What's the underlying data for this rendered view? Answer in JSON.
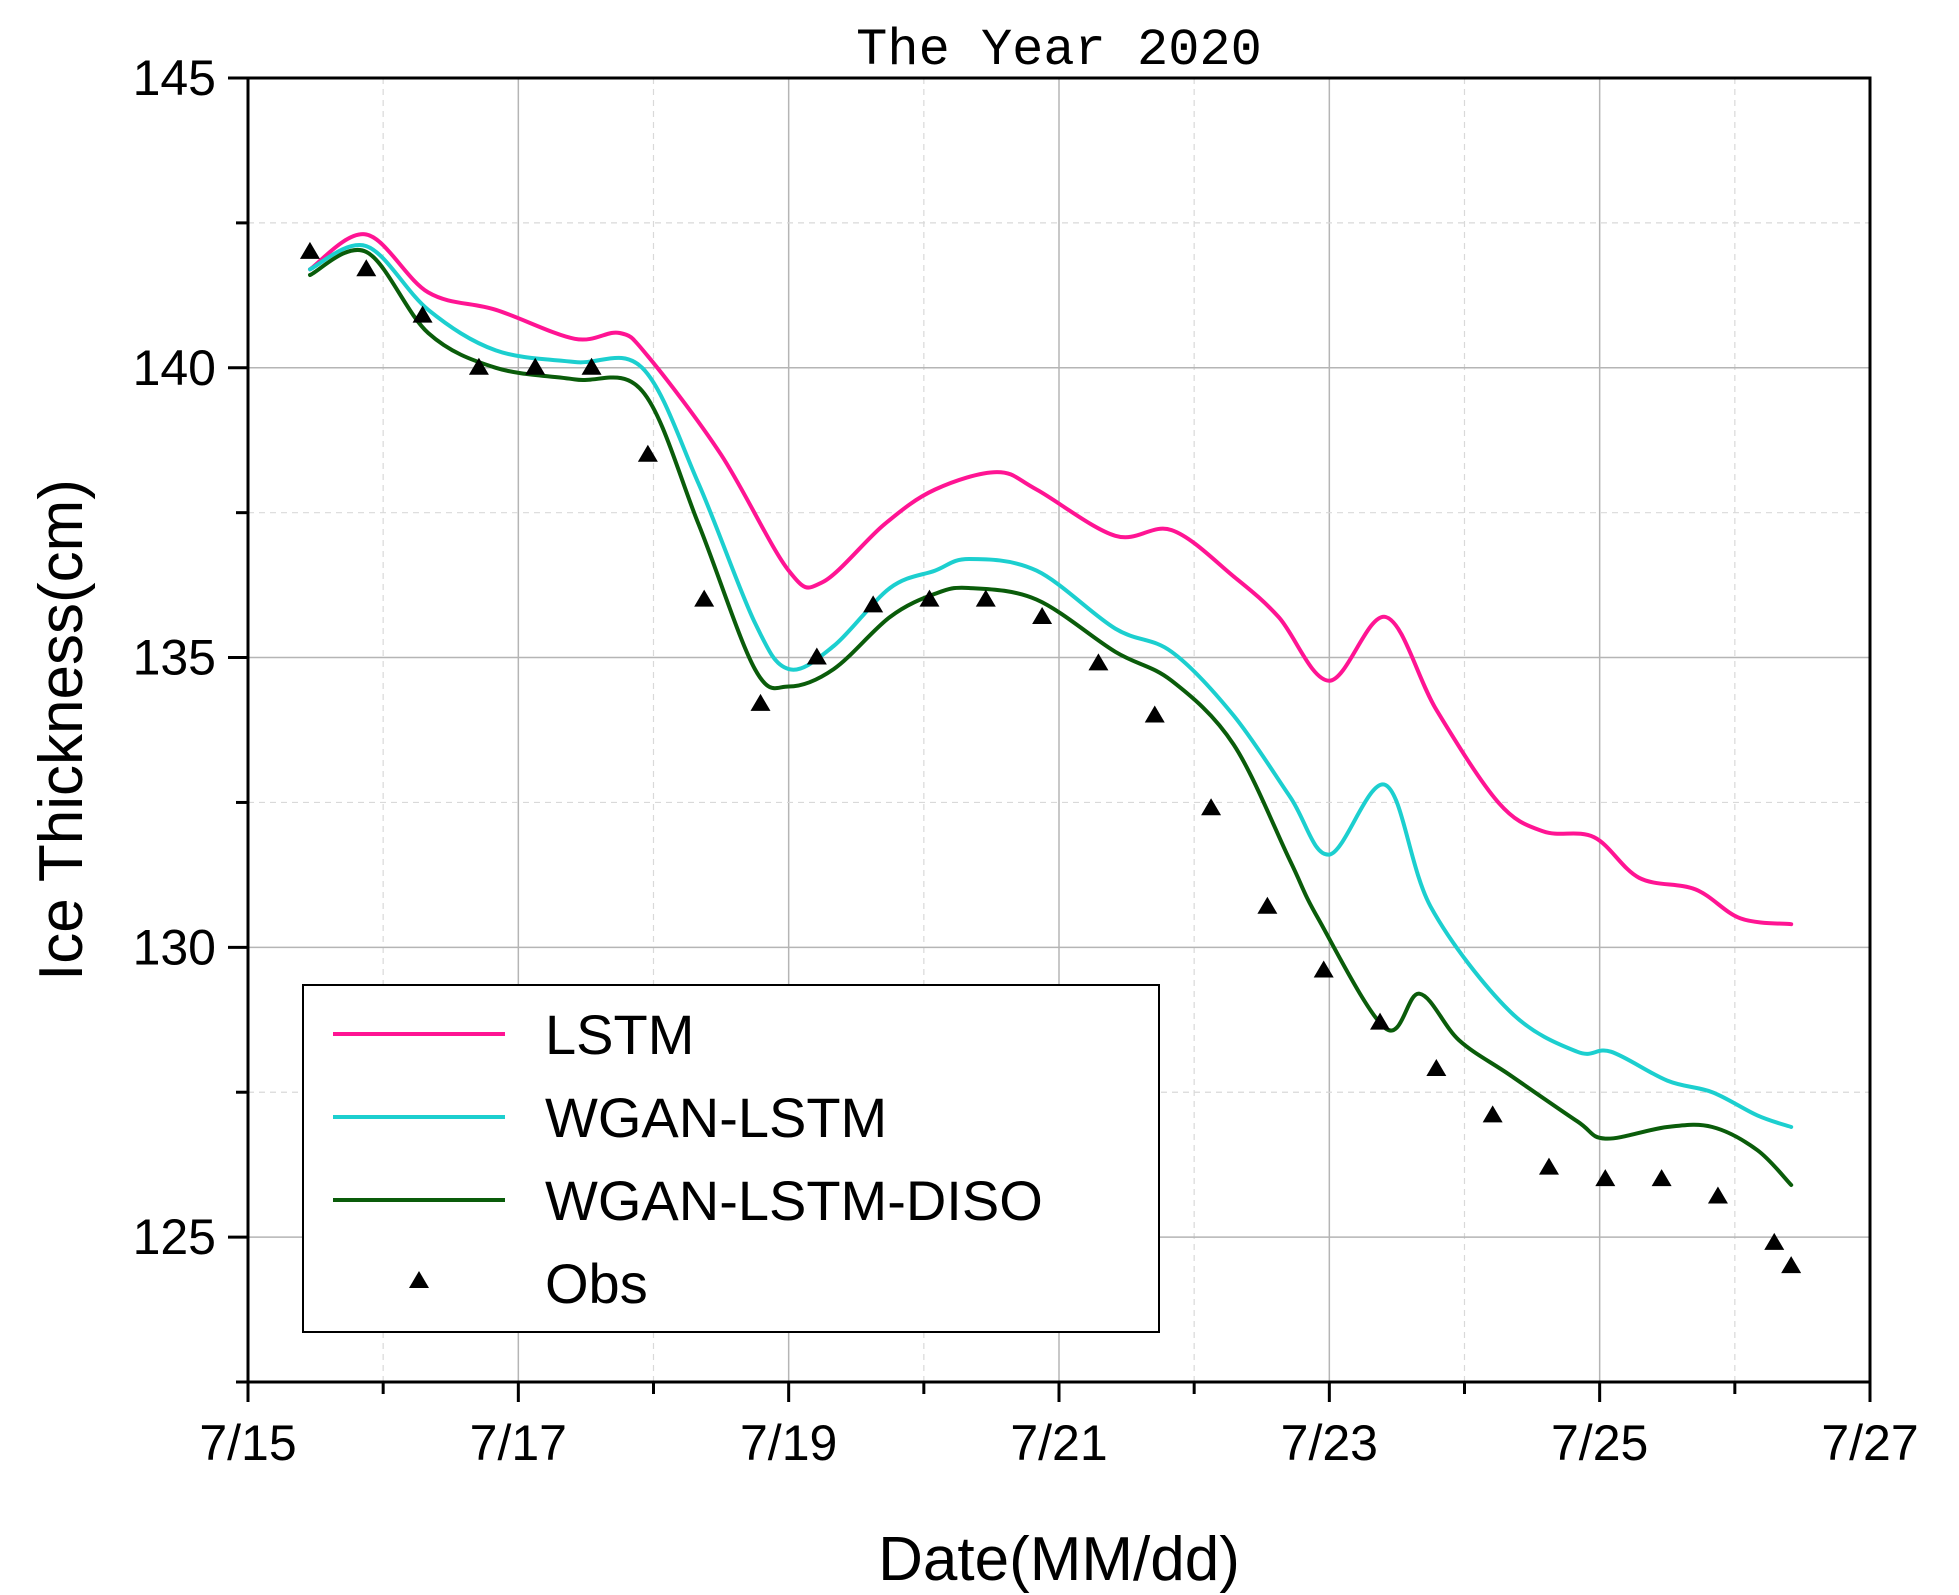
{
  "chart_data": {
    "type": "line",
    "title": "The Year 2020",
    "xlabel": "Date(MM/dd)",
    "ylabel": "Ice Thickness(cm)",
    "x_ticks": [
      "7/15",
      "7/17",
      "7/19",
      "7/21",
      "7/23",
      "7/25",
      "7/27"
    ],
    "y_ticks": [
      "125",
      "130",
      "135",
      "140",
      "145"
    ],
    "xlim": [
      "2020-07-15",
      "2020-07-27"
    ],
    "ylim": [
      122.5,
      145
    ],
    "grid": true,
    "legend_position": "bottom-left",
    "series": [
      {
        "name": "LSTM",
        "color": "#ff1493",
        "style": "line",
        "x": [
          "2020-07-15 11:00",
          "2020-07-15 21:00",
          "2020-07-16 08:00",
          "2020-07-16 20:00",
          "2020-07-17 10:00",
          "2020-07-17 18:00",
          "2020-07-17 23:00",
          "2020-07-18 12:00",
          "2020-07-19 00:00",
          "2020-07-19 06:00",
          "2020-07-19 17:00",
          "2020-07-20 02:00",
          "2020-07-20 13:00",
          "2020-07-20 20:00",
          "2020-07-21 10:00",
          "2020-07-21 20:00",
          "2020-07-22 07:00",
          "2020-07-22 15:00",
          "2020-07-23 00:00",
          "2020-07-23 10:00",
          "2020-07-23 19:00",
          "2020-07-24 06:00",
          "2020-07-24 14:00",
          "2020-07-24 23:00",
          "2020-07-25 07:00",
          "2020-07-25 17:00",
          "2020-07-26 01:00",
          "2020-07-26 10:00"
        ],
        "values": [
          141.7,
          142.3,
          141.3,
          141.0,
          140.5,
          140.6,
          140.2,
          138.5,
          136.5,
          136.3,
          137.3,
          137.9,
          138.2,
          137.9,
          137.1,
          137.2,
          136.4,
          135.7,
          134.6,
          135.7,
          134.1,
          132.5,
          132.0,
          131.9,
          131.2,
          131.0,
          130.5,
          130.4
        ]
      },
      {
        "name": "WGAN-LSTM",
        "color": "#1ccfcf",
        "style": "line",
        "x": [
          "2020-07-15 11:00",
          "2020-07-15 21:00",
          "2020-07-16 08:00",
          "2020-07-16 20:00",
          "2020-07-17 10:00",
          "2020-07-17 22:00",
          "2020-07-18 08:00",
          "2020-07-18 18:00",
          "2020-07-19 00:00",
          "2020-07-19 08:00",
          "2020-07-19 18:00",
          "2020-07-20 02:00",
          "2020-07-20 08:00",
          "2020-07-20 20:00",
          "2020-07-21 10:00",
          "2020-07-21 20:00",
          "2020-07-22 07:00",
          "2020-07-22 17:00",
          "2020-07-23 00:00",
          "2020-07-23 10:00",
          "2020-07-23 18:00",
          "2020-07-24 08:00",
          "2020-07-24 20:00",
          "2020-07-25 02:00",
          "2020-07-25 12:00",
          "2020-07-25 20:00",
          "2020-07-26 04:00",
          "2020-07-26 10:00"
        ],
        "values": [
          141.7,
          142.1,
          141.0,
          140.3,
          140.1,
          140.0,
          138.0,
          135.6,
          134.8,
          135.2,
          136.2,
          136.5,
          136.7,
          136.5,
          135.5,
          135.1,
          134.0,
          132.6,
          131.6,
          132.8,
          130.7,
          128.9,
          128.2,
          128.2,
          127.7,
          127.5,
          127.1,
          126.9
        ]
      },
      {
        "name": "WGAN-LSTM-DISO",
        "color": "#0a5c0a",
        "style": "line",
        "x": [
          "2020-07-15 11:00",
          "2020-07-15 21:00",
          "2020-07-16 08:00",
          "2020-07-16 20:00",
          "2020-07-17 10:00",
          "2020-07-17 22:00",
          "2020-07-18 08:00",
          "2020-07-18 18:00",
          "2020-07-19 00:00",
          "2020-07-19 08:00",
          "2020-07-19 18:00",
          "2020-07-20 02:00",
          "2020-07-20 08:00",
          "2020-07-20 20:00",
          "2020-07-21 10:00",
          "2020-07-21 20:00",
          "2020-07-22 07:00",
          "2020-07-22 17:00",
          "2020-07-22 22:00",
          "2020-07-23 10:00",
          "2020-07-23 16:00",
          "2020-07-23 23:00",
          "2020-07-24 08:00",
          "2020-07-24 20:00",
          "2020-07-25 01:00",
          "2020-07-25 12:00",
          "2020-07-25 20:00",
          "2020-07-26 04:00",
          "2020-07-26 10:00"
        ],
        "values": [
          141.6,
          142.0,
          140.6,
          140.0,
          139.8,
          139.6,
          137.3,
          134.8,
          134.5,
          134.8,
          135.7,
          136.1,
          136.2,
          136.0,
          135.1,
          134.6,
          133.5,
          131.5,
          130.5,
          128.6,
          129.2,
          128.4,
          127.8,
          127.0,
          126.7,
          126.9,
          126.9,
          126.5,
          125.9
        ]
      },
      {
        "name": "Obs",
        "color": "#000000",
        "style": "marker-triangle",
        "x": [
          "2020-07-15 11:00",
          "2020-07-15 21:00",
          "2020-07-16 07:00",
          "2020-07-16 17:00",
          "2020-07-17 03:00",
          "2020-07-17 13:00",
          "2020-07-17 23:00",
          "2020-07-18 09:00",
          "2020-07-18 19:00",
          "2020-07-19 05:00",
          "2020-07-19 15:00",
          "2020-07-20 01:00",
          "2020-07-20 11:00",
          "2020-07-20 21:00",
          "2020-07-21 07:00",
          "2020-07-21 17:00",
          "2020-07-22 03:00",
          "2020-07-22 13:00",
          "2020-07-22 23:00",
          "2020-07-23 09:00",
          "2020-07-23 19:00",
          "2020-07-24 05:00",
          "2020-07-24 15:00",
          "2020-07-25 01:00",
          "2020-07-25 11:00",
          "2020-07-25 21:00",
          "2020-07-26 07:00",
          "2020-07-26 10:00"
        ],
        "values": [
          142.0,
          141.7,
          140.9,
          140.0,
          140.0,
          140.0,
          138.5,
          136.0,
          134.2,
          135.0,
          135.9,
          136.0,
          136.0,
          135.7,
          134.9,
          134.0,
          132.4,
          130.7,
          129.6,
          128.7,
          127.9,
          127.1,
          126.2,
          126.0,
          126.0,
          125.7,
          124.9,
          124.5
        ]
      }
    ]
  }
}
